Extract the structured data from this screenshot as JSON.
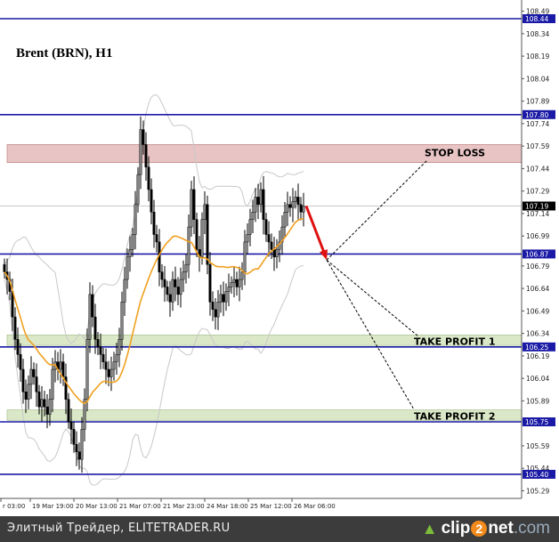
{
  "chart_data": {
    "type": "candlestick",
    "title": "Brent (BRN), H1",
    "ylim": [
      105.22,
      108.56
    ],
    "y_ticks": [
      "108.49",
      "108.34",
      "108.19",
      "108.04",
      "107.89",
      "107.74",
      "107.59",
      "107.44",
      "107.29",
      "107.14",
      "106.99",
      "106.79",
      "106.64",
      "106.49",
      "106.34",
      "106.19",
      "106.04",
      "105.89",
      "105.59",
      "105.44",
      "105.29"
    ],
    "x_ticks": [
      "r 03:00",
      "19 Mar 19:00",
      "20 Mar 13:00",
      "21 Mar 07:00",
      "21 Mar 23:00",
      "24 Mar 18:00",
      "25 Mar 12:00",
      "26 Mar 06:00"
    ],
    "closes": [
      106.75,
      106.7,
      106.62,
      106.45,
      106.3,
      106.2,
      106.1,
      105.95,
      105.9,
      106.0,
      106.1,
      106.05,
      105.95,
      105.85,
      105.9,
      105.85,
      105.8,
      105.9,
      106.1,
      106.15,
      106.1,
      106.15,
      106.05,
      105.9,
      105.75,
      105.7,
      105.6,
      105.55,
      105.5,
      105.7,
      105.9,
      106.3,
      106.6,
      106.45,
      106.3,
      106.25,
      106.2,
      106.15,
      106.1,
      106.05,
      106.1,
      106.15,
      106.2,
      106.3,
      106.55,
      106.7,
      106.85,
      106.9,
      107.0,
      107.2,
      107.4,
      107.7,
      107.6,
      107.45,
      107.3,
      107.15,
      107.0,
      106.95,
      106.75,
      106.7,
      106.65,
      106.6,
      106.55,
      106.7,
      106.65,
      106.6,
      106.7,
      106.75,
      106.8,
      107.05,
      107.3,
      107.1,
      106.9,
      106.85,
      107.1,
      107.2,
      106.8,
      106.55,
      106.5,
      106.45,
      106.55,
      106.6,
      106.55,
      106.62,
      106.65,
      106.68,
      106.7,
      106.65,
      106.7,
      106.75,
      106.95,
      107.0,
      107.1,
      107.15,
      107.25,
      107.2,
      107.3,
      107.1,
      107.0,
      106.95,
      106.9,
      106.85,
      106.9,
      106.95,
      107.05,
      107.15,
      107.2,
      107.18,
      107.22,
      107.25,
      107.2,
      107.15,
      107.19
    ],
    "current_price": "107.19",
    "levels": [
      {
        "price": 108.44,
        "label": "108.44"
      },
      {
        "price": 107.8,
        "label": "107.80"
      },
      {
        "price": 106.87,
        "label": "106.87"
      },
      {
        "price": 106.25,
        "label": "106.25"
      },
      {
        "price": 105.75,
        "label": "105.75"
      },
      {
        "price": 105.4,
        "label": "105.40"
      }
    ],
    "zones": [
      {
        "label": "STOP LOSS",
        "from": 107.48,
        "to": 107.6,
        "color": "#e8c4c4"
      },
      {
        "label": "TAKE PROFIT 1",
        "from": 106.26,
        "to": 106.33,
        "color": "#dbe8c8"
      },
      {
        "label": "TAKE PROFIT 2",
        "from": 105.76,
        "to": 105.83,
        "color": "#dbe8c8"
      }
    ],
    "colors": {
      "level": "#1a1aa6",
      "ma": "#f0a020",
      "bands": "#c8c8c8",
      "arrow": "#e01010",
      "candle": "#000000"
    }
  },
  "footer": {
    "text": "Элитный Трейдер, ELITETRADER.RU",
    "logo": "clip2net.com"
  }
}
